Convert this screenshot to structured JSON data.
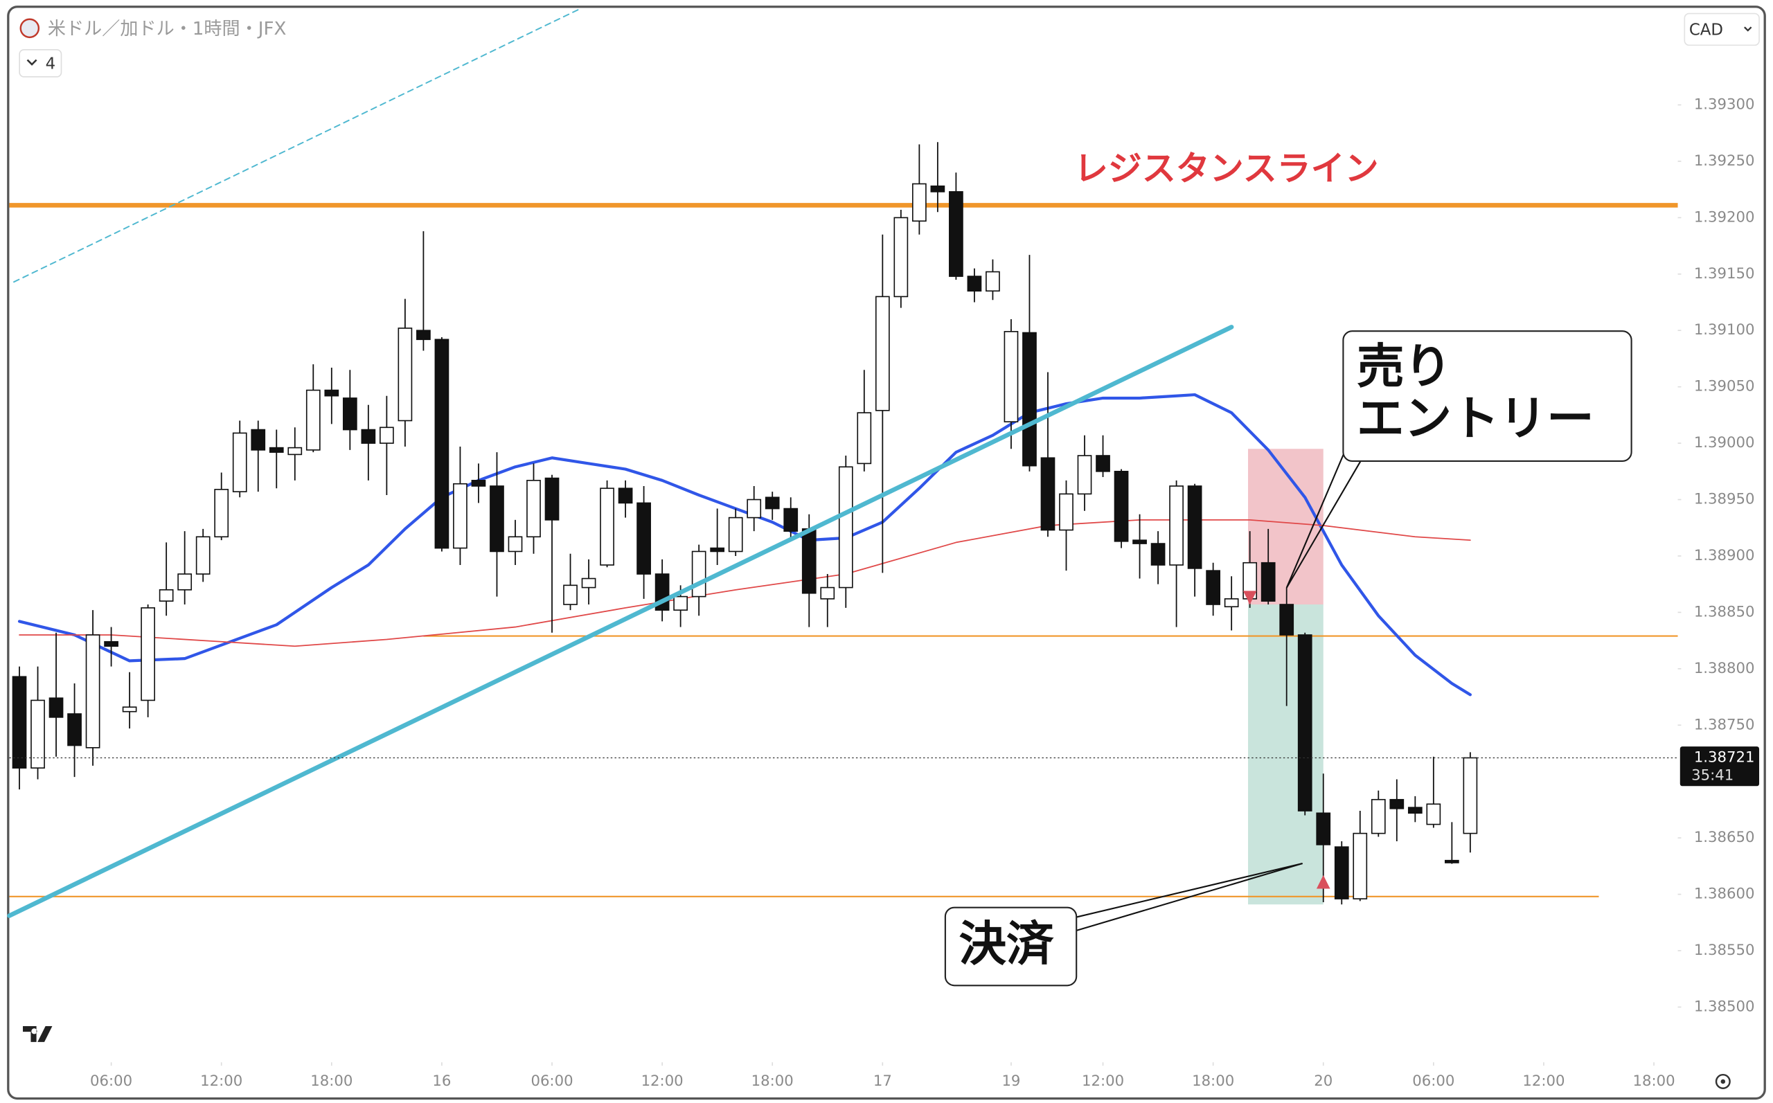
{
  "chart_data": {
    "type": "candlestick",
    "title": "米ドル／加ドル・1時間・JFX",
    "currency": "CAD",
    "indicators_hidden": 4,
    "grid": false,
    "x": [
      0,
      1,
      2,
      3,
      4,
      5,
      6,
      7,
      8,
      9,
      10,
      11,
      12,
      13,
      14,
      15,
      16,
      17,
      18,
      19,
      20,
      21,
      22,
      23,
      24,
      25,
      26,
      27,
      28,
      29,
      30,
      31,
      32,
      33,
      34,
      35,
      36,
      37,
      38,
      39,
      40,
      41,
      42,
      43,
      44,
      45,
      46,
      47,
      48,
      49,
      50,
      51,
      52,
      53,
      54,
      55,
      56,
      57,
      58,
      59,
      60,
      61,
      62,
      63,
      64,
      65,
      66,
      67,
      68,
      69,
      70,
      71,
      72,
      73,
      74,
      75,
      76,
      77,
      78,
      79
    ],
    "xlim": [
      -0.55,
      90.3
    ],
    "xticks": [
      {
        "value": 5,
        "label": "06:00"
      },
      {
        "value": 11,
        "label": "12:00"
      },
      {
        "value": 17,
        "label": "18:00"
      },
      {
        "value": 23,
        "label": "16"
      },
      {
        "value": 29,
        "label": "06:00"
      },
      {
        "value": 35,
        "label": "12:00"
      },
      {
        "value": 41,
        "label": "18:00"
      },
      {
        "value": 47,
        "label": "17"
      },
      {
        "value": 54,
        "label": "19"
      },
      {
        "value": 59,
        "label": "12:00"
      },
      {
        "value": 65,
        "label": "18:00"
      },
      {
        "value": 71,
        "label": "20"
      },
      {
        "value": 77,
        "label": "06:00"
      },
      {
        "value": 83,
        "label": "12:00"
      },
      {
        "value": 89,
        "label": "18:00"
      }
    ],
    "ylim": [
      1.38451,
      1.39385
    ],
    "yticks": [
      {
        "value": 1.393,
        "label": "1.39300"
      },
      {
        "value": 1.3925,
        "label": "1.39250"
      },
      {
        "value": 1.392,
        "label": "1.39200"
      },
      {
        "value": 1.3915,
        "label": "1.39150"
      },
      {
        "value": 1.391,
        "label": "1.39100"
      },
      {
        "value": 1.3905,
        "label": "1.39050"
      },
      {
        "value": 1.39,
        "label": "1.39000"
      },
      {
        "value": 1.3895,
        "label": "1.38950"
      },
      {
        "value": 1.389,
        "label": "1.38900"
      },
      {
        "value": 1.3885,
        "label": "1.38850"
      },
      {
        "value": 1.388,
        "label": "1.38800"
      },
      {
        "value": 1.3875,
        "label": "1.38750"
      },
      {
        "value": 1.3865,
        "label": "1.38650"
      },
      {
        "value": 1.386,
        "label": "1.38600"
      },
      {
        "value": 1.3855,
        "label": "1.38550"
      },
      {
        "value": 1.385,
        "label": "1.38500"
      }
    ],
    "up_color": "#ffffff",
    "down_color": "#111111",
    "candles": {
      "open": [
        1.38793,
        1.38712,
        1.38774,
        1.3876,
        1.3873,
        1.38824,
        1.38762,
        1.38772,
        1.3886,
        1.3887,
        1.38884,
        1.38917,
        1.38957,
        1.39012,
        1.38996,
        1.3899,
        1.38994,
        1.39047,
        1.3904,
        1.39012,
        1.39,
        1.3902,
        1.391,
        1.39092,
        1.38907,
        1.38967,
        1.38962,
        1.38904,
        1.38917,
        1.38969,
        1.38857,
        1.38872,
        1.38892,
        1.3896,
        1.38947,
        1.38884,
        1.38852,
        1.38864,
        1.38907,
        1.38904,
        1.38934,
        1.38952,
        1.38942,
        1.38924,
        1.38862,
        1.38872,
        1.38982,
        1.39029,
        1.3913,
        1.39197,
        1.39228,
        1.39223,
        1.39148,
        1.39135,
        1.39019,
        1.39098,
        1.38987,
        1.38923,
        1.38955,
        1.38989,
        1.38975,
        1.38914,
        1.38911,
        1.38892,
        1.38962,
        1.38887,
        1.38855,
        1.38862,
        1.38894,
        1.38857,
        1.3883,
        1.38672,
        1.38642,
        1.38596,
        1.38654,
        1.38684,
        1.38677,
        1.38662,
        1.3863,
        1.38654
      ],
      "high": [
        1.38802,
        1.38802,
        1.38832,
        1.38787,
        1.38852,
        1.38837,
        1.38797,
        1.38857,
        1.38912,
        1.38922,
        1.38924,
        1.38974,
        1.3902,
        1.3902,
        1.39012,
        1.39014,
        1.3907,
        1.39067,
        1.39065,
        1.39034,
        1.39042,
        1.39128,
        1.39188,
        1.39094,
        1.38997,
        1.38982,
        1.38992,
        1.38932,
        1.38982,
        1.38972,
        1.38902,
        1.38897,
        1.38967,
        1.38967,
        1.38962,
        1.38897,
        1.38874,
        1.3891,
        1.38942,
        1.38942,
        1.38962,
        1.38957,
        1.38952,
        1.38937,
        1.38884,
        1.38989,
        1.39065,
        1.39185,
        1.39207,
        1.39265,
        1.39267,
        1.3924,
        1.39155,
        1.39163,
        1.3911,
        1.39167,
        1.39063,
        1.38967,
        1.39007,
        1.39007,
        1.38977,
        1.38937,
        1.38922,
        1.38967,
        1.38964,
        1.38894,
        1.38882,
        1.38922,
        1.38924,
        1.38872,
        1.38832,
        1.38707,
        1.38647,
        1.38674,
        1.38692,
        1.38702,
        1.38687,
        1.38722,
        1.38664,
        1.38726
      ],
      "low": [
        1.38693,
        1.38702,
        1.38722,
        1.38704,
        1.38714,
        1.38802,
        1.38747,
        1.38757,
        1.38847,
        1.38857,
        1.38877,
        1.38914,
        1.38952,
        1.38957,
        1.3896,
        1.38967,
        1.38992,
        1.39017,
        1.38994,
        1.38967,
        1.38954,
        1.38997,
        1.39082,
        1.38904,
        1.38892,
        1.38947,
        1.38864,
        1.38892,
        1.38902,
        1.38832,
        1.38852,
        1.38857,
        1.3889,
        1.38934,
        1.38862,
        1.38842,
        1.38837,
        1.38847,
        1.38892,
        1.389,
        1.38922,
        1.38932,
        1.38914,
        1.38837,
        1.38837,
        1.38854,
        1.38975,
        1.38885,
        1.3912,
        1.39185,
        1.39205,
        1.39145,
        1.39125,
        1.39127,
        1.38995,
        1.38975,
        1.38917,
        1.38887,
        1.3894,
        1.3897,
        1.38907,
        1.3888,
        1.38875,
        1.38837,
        1.38864,
        1.38847,
        1.38834,
        1.38854,
        1.38857,
        1.38767,
        1.3867,
        1.38593,
        1.38591,
        1.38594,
        1.38651,
        1.38647,
        1.38664,
        1.38659,
        1.38627,
        1.38637
      ],
      "close": [
        1.38712,
        1.38772,
        1.38757,
        1.38732,
        1.3883,
        1.3882,
        1.38766,
        1.38854,
        1.3887,
        1.38884,
        1.38917,
        1.38959,
        1.39009,
        1.38994,
        1.38992,
        1.38996,
        1.39047,
        1.39042,
        1.39012,
        1.39,
        1.39014,
        1.39102,
        1.39092,
        1.38907,
        1.38964,
        1.38962,
        1.38904,
        1.38917,
        1.38967,
        1.38932,
        1.38874,
        1.3888,
        1.3896,
        1.38947,
        1.38884,
        1.38852,
        1.38864,
        1.38904,
        1.38904,
        1.38934,
        1.3895,
        1.38942,
        1.38922,
        1.38867,
        1.38872,
        1.38979,
        1.39027,
        1.3913,
        1.392,
        1.3923,
        1.39223,
        1.39148,
        1.39135,
        1.39152,
        1.39099,
        1.3898,
        1.38923,
        1.38955,
        1.38989,
        1.38975,
        1.38913,
        1.38911,
        1.38892,
        1.38962,
        1.38889,
        1.38857,
        1.38862,
        1.38894,
        1.3886,
        1.3883,
        1.38674,
        1.38644,
        1.38596,
        1.38654,
        1.38684,
        1.38676,
        1.38672,
        1.3868,
        1.38628,
        1.38721
      ]
    },
    "lines": [
      {
        "color": "#3056e8",
        "style": "thick",
        "x": [
          0,
          3,
          6,
          9,
          14,
          17,
          19,
          21,
          23,
          25,
          27,
          29,
          31,
          33,
          35,
          37,
          39,
          41,
          43,
          45,
          47,
          49,
          51,
          53,
          55,
          57,
          59,
          61,
          63,
          64,
          66,
          68,
          70,
          72,
          74,
          76,
          78,
          79
        ],
        "values": [
          1.38842,
          1.3883,
          1.38807,
          1.38809,
          1.38839,
          1.38872,
          1.38892,
          1.38924,
          1.38952,
          1.38967,
          1.38979,
          1.38987,
          1.38982,
          1.38977,
          1.38967,
          1.38954,
          1.38942,
          1.3893,
          1.38914,
          1.38916,
          1.3893,
          1.3896,
          1.38992,
          1.39007,
          1.39027,
          1.39035,
          1.3904,
          1.3904,
          1.39042,
          1.39043,
          1.39027,
          1.38994,
          1.38952,
          1.38892,
          1.38847,
          1.38812,
          1.38787,
          1.38777
        ]
      },
      {
        "color": "#e04848",
        "style": "thin",
        "x": [
          0,
          5,
          11,
          15,
          20,
          27,
          33,
          39,
          45,
          51,
          56,
          61,
          67,
          71,
          76,
          79
        ],
        "values": [
          1.3883,
          1.3883,
          1.38824,
          1.3882,
          1.38826,
          1.38837,
          1.38854,
          1.3887,
          1.38884,
          1.38912,
          1.38927,
          1.38932,
          1.38932,
          1.38927,
          1.38917,
          1.38914
        ]
      }
    ],
    "levels": [
      {
        "value": 1.39211,
        "x": [
          -0.55,
          90.3
        ],
        "color": "#f0962a",
        "style": "thick"
      },
      {
        "value": 1.38829,
        "x": [
          22,
          90.3
        ],
        "color": "#f0962a",
        "style": "thin"
      },
      {
        "value": 1.38598,
        "x": [
          -0.55,
          86
        ],
        "color": "#f0962a",
        "style": "thin"
      }
    ],
    "trend_lines": [
      {
        "x": [
          -0.55,
          66
        ],
        "values": [
          1.38581,
          1.39103
        ],
        "color": "#4fb8d0",
        "style": "thick"
      },
      {
        "x": [
          -0.3,
          30.5
        ],
        "values": [
          1.39143,
          1.39385
        ],
        "color": "#4fb8d0",
        "style": "dashed"
      }
    ],
    "position": {
      "x": [
        66.9,
        71
      ],
      "stop": 1.38995,
      "entry": 1.38857,
      "target": 1.38591,
      "stop_color": "#f2c4c9",
      "target_color": "#c9e4dc"
    },
    "signals": [
      {
        "x": 67,
        "value": 1.38857,
        "direction": "sell",
        "color": "#d9505c"
      },
      {
        "x": 71,
        "value": 1.38617,
        "direction": "buy",
        "color": "#d9505c"
      }
    ],
    "last_price": {
      "value": 1.38721,
      "label": "1.38721",
      "countdown": "35:41"
    },
    "annotations": {
      "resistance": "レジスタンスライン",
      "entry": [
        "売り",
        "エントリー"
      ],
      "exit": "決済"
    }
  }
}
